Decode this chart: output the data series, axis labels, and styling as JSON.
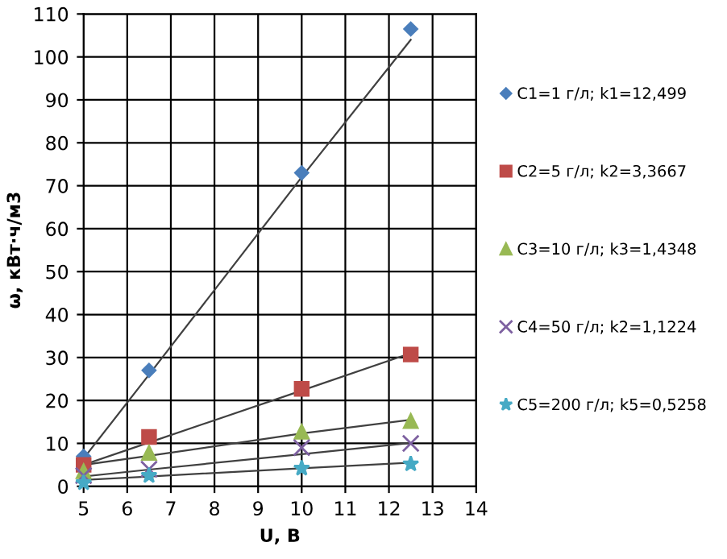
{
  "chart_data": {
    "type": "scatter",
    "xlabel": "U, В",
    "ylabel": "ω, кВт·ч/м3",
    "x": [
      5,
      6.5,
      10,
      12.5
    ],
    "series": [
      {
        "name": "C1=1 г/л; k1=12,499",
        "color": "#4a7ebb",
        "marker": "diamond",
        "values": [
          7,
          27,
          73,
          106.5
        ]
      },
      {
        "name": "C2=5 г/л; k2=3,3667",
        "color": "#be4b48",
        "marker": "square",
        "values": [
          5,
          11.5,
          22.7,
          30.7
        ]
      },
      {
        "name": "C3=10 г/л; k3=1,4348",
        "color": "#98b954",
        "marker": "triangle",
        "values": [
          3.5,
          7.8,
          12.7,
          15.2
        ]
      },
      {
        "name": "C4=50 г/л; k2=1,1224",
        "color": "#7d60a0",
        "marker": "cross",
        "values": [
          2.5,
          4,
          9,
          10
        ]
      },
      {
        "name": "C5=200 г/л; k5=0,5258",
        "color": "#46aac5",
        "marker": "star",
        "values": [
          0.8,
          2.5,
          4.2,
          5.2
        ]
      },
      {
        "type": "line",
        "color": "#404040",
        "values": [
          6.5,
          26,
          72,
          104
        ]
      },
      {
        "type": "line",
        "color": "#404040",
        "values": [
          5,
          10.2,
          22.3,
          31
        ]
      },
      {
        "type": "line",
        "color": "#404040",
        "values": [
          5,
          7.1,
          12.3,
          15.5
        ]
      },
      {
        "type": "line",
        "color": "#404040",
        "values": [
          2.3,
          3.9,
          7.5,
          10.1
        ]
      },
      {
        "type": "line",
        "color": "#404040",
        "values": [
          1.5,
          2.3,
          4.2,
          5.5
        ]
      }
    ],
    "xlim": [
      5,
      14
    ],
    "xticks": [
      5,
      6,
      7,
      8,
      9,
      10,
      11,
      12,
      13,
      14
    ],
    "ylim": [
      0,
      110
    ],
    "yticks": [
      0,
      10,
      20,
      30,
      40,
      50,
      60,
      70,
      80,
      90,
      100,
      110
    ],
    "grid": true,
    "legend": "right"
  }
}
